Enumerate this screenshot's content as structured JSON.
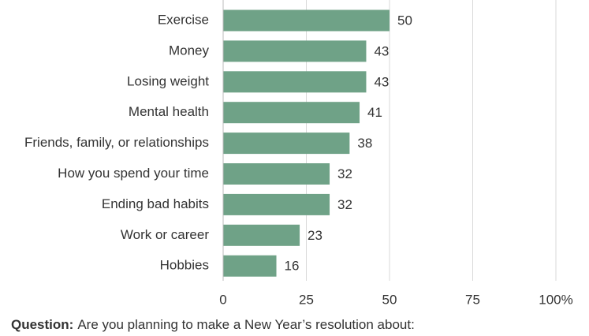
{
  "chart_data": {
    "type": "bar",
    "orientation": "horizontal",
    "categories": [
      "Exercise",
      "Money",
      "Losing weight",
      "Mental health",
      "Friends, family, or relationships",
      "How you spend your time",
      "Ending bad habits",
      "Work or career",
      "Hobbies"
    ],
    "values": [
      50,
      43,
      43,
      41,
      38,
      32,
      32,
      23,
      16
    ],
    "color": "#6fa287",
    "xlim": [
      0,
      100
    ],
    "xticks": [
      0,
      25,
      50,
      75,
      {
        "value": 100,
        "label": "100%"
      }
    ],
    "grid": true,
    "note": {
      "label": "Question:",
      "text": "Are you planning to make a New Year’s resolution about:"
    }
  }
}
